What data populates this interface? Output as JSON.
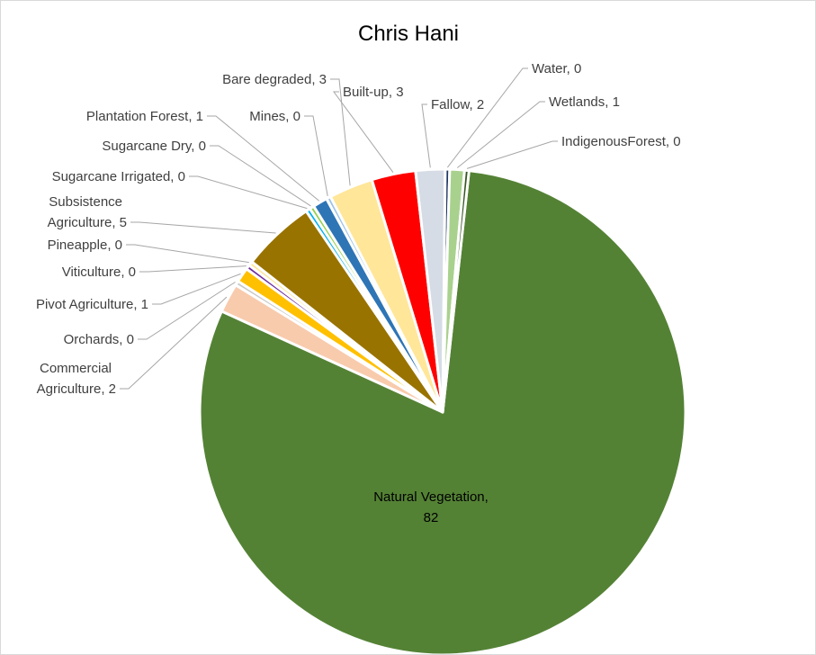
{
  "chart_data": {
    "type": "pie",
    "title": "Chris Hani",
    "slices": [
      {
        "name": "Natural Vegetation",
        "value": 82,
        "display": "82",
        "color": "#548235"
      },
      {
        "name": "Commercial Agriculture",
        "value": 2,
        "display": "2",
        "color": "#f8cbad"
      },
      {
        "name": "Orchards",
        "value": 0,
        "display": "0",
        "color": "#c9c9c9"
      },
      {
        "name": "Pivot  Agriculture",
        "value": 1,
        "display": "1",
        "color": "#ffc000"
      },
      {
        "name": "Viticulture",
        "value": 0,
        "display": "0",
        "color": "#7030a0"
      },
      {
        "name": "Pineapple",
        "value": 0,
        "display": "0",
        "color": "#ffe699"
      },
      {
        "name": "Subsistence Agriculture",
        "value": 5,
        "display": "5",
        "color": "#997300"
      },
      {
        "name": "Sugarcane Irrigated",
        "value": 0,
        "display": "0",
        "color": "#00b0f0"
      },
      {
        "name": "Sugarcane Dry",
        "value": 0,
        "display": "0",
        "color": "#92d050"
      },
      {
        "name": "Plantation Forest",
        "value": 1,
        "display": "1",
        "color": "#2e75b6"
      },
      {
        "name": "Mines",
        "value": 0,
        "display": "0",
        "color": "#9dc3e6"
      },
      {
        "name": "Bare degraded",
        "value": 3,
        "display": "3",
        "color": "#ffe699"
      },
      {
        "name": "Built-up",
        "value": 3,
        "display": "3",
        "color": "#ff0000"
      },
      {
        "name": "Fallow",
        "value": 2,
        "display": "2",
        "color": "#d6dce5"
      },
      {
        "name": "Water",
        "value": 0,
        "display": "0",
        "color": "#1f3864"
      },
      {
        "name": "Wetlands",
        "value": 1,
        "display": "1",
        "color": "#a9d18e"
      },
      {
        "name": "IndigenousForest",
        "value": 0,
        "display": "0",
        "color": "#375623"
      }
    ],
    "legend": "none"
  }
}
